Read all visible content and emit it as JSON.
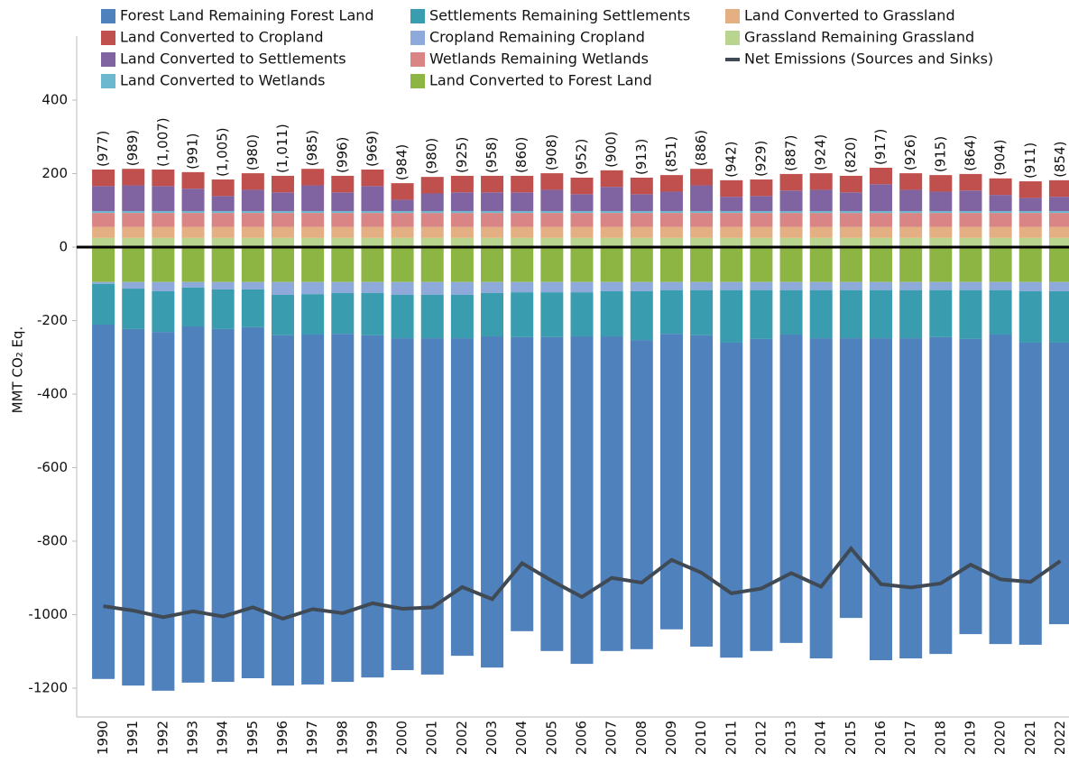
{
  "chart_data": {
    "type": "bar",
    "y_label": "MMT CO₂ Eq.",
    "categories": [
      "1990",
      "1991",
      "1992",
      "1993",
      "1994",
      "1995",
      "1996",
      "1997",
      "1998",
      "1999",
      "2000",
      "2001",
      "2002",
      "2003",
      "2004",
      "2005",
      "2006",
      "2007",
      "2008",
      "2009",
      "2010",
      "2011",
      "2012",
      "2013",
      "2014",
      "2015",
      "2016",
      "2017",
      "2018",
      "2019",
      "2020",
      "2021",
      "2022"
    ],
    "ylim": [
      -1300,
      500
    ],
    "yticks": [
      -1200,
      -1000,
      -800,
      -600,
      -400,
      -200,
      0,
      200,
      400
    ],
    "series": [
      {
        "name": "Forest Land Remaining Forest Land",
        "color": "#4f81bd",
        "values": [
          -964,
          -970,
          -976,
          -969,
          -960,
          -955,
          -953,
          -952,
          -947,
          -931,
          -903,
          -915,
          -864,
          -901,
          -800,
          -854,
          -891,
          -856,
          -841,
          -804,
          -847,
          -857,
          -849,
          -839,
          -871,
          -761,
          -876,
          -871,
          -862,
          -803,
          -842,
          -822,
          -766
        ]
      },
      {
        "name": "Land Converted to Cropland",
        "color": "#c0504d",
        "values": [
          45,
          45,
          45,
          45,
          45,
          45,
          45,
          45,
          45,
          45,
          45,
          45,
          45,
          45,
          45,
          45,
          45,
          45,
          45,
          45,
          45,
          45,
          45,
          45,
          45,
          45,
          45,
          45,
          45,
          45,
          45,
          45,
          45
        ]
      },
      {
        "name": "Land Converted to Settlements",
        "color": "#8064a2",
        "values": [
          68,
          70,
          68,
          61,
          41,
          58,
          51,
          70,
          51,
          68,
          31,
          48,
          51,
          51,
          51,
          58,
          46,
          66,
          46,
          53,
          70,
          39,
          41,
          56,
          58,
          51,
          73,
          58,
          53,
          56,
          44,
          36,
          39
        ]
      },
      {
        "name": "Land Converted to Wetlands",
        "color": "#6cb8cf",
        "values": [
          5,
          5,
          5,
          5,
          5,
          5,
          5,
          5,
          5,
          5,
          5,
          5,
          5,
          5,
          5,
          5,
          5,
          5,
          5,
          5,
          5,
          5,
          5,
          5,
          5,
          5,
          5,
          5,
          5,
          5,
          5,
          5,
          5
        ]
      },
      {
        "name": "Settlements Remaining Settlements",
        "color": "#3a9caf",
        "values": [
          -111,
          -110,
          -111,
          -106,
          -108,
          -103,
          -110,
          -110,
          -111,
          -115,
          -118,
          -118,
          -118,
          -118,
          -122,
          -122,
          -120,
          -123,
          -133,
          -119,
          -123,
          -143,
          -133,
          -121,
          -131,
          -131,
          -131,
          -131,
          -128,
          -133,
          -121,
          -140,
          -140
        ]
      },
      {
        "name": "Cropland Remaining Cropland",
        "color": "#8eaadb",
        "values": [
          -5,
          -18,
          -25,
          -15,
          -20,
          -20,
          -35,
          -33,
          -30,
          -30,
          -35,
          -35,
          -35,
          -30,
          -28,
          -28,
          -28,
          -25,
          -25,
          -22,
          -22,
          -22,
          -22,
          -22,
          -22,
          -22,
          -22,
          -22,
          -22,
          -22,
          -22,
          -25,
          -25
        ]
      },
      {
        "name": "Wetlands Remaining Wetlands",
        "color": "#d98585",
        "values": [
          38,
          38,
          38,
          38,
          38,
          38,
          38,
          38,
          38,
          38,
          38,
          38,
          38,
          38,
          38,
          38,
          38,
          38,
          38,
          38,
          38,
          38,
          38,
          38,
          38,
          38,
          38,
          38,
          38,
          38,
          38,
          38,
          38
        ]
      },
      {
        "name": "Land Converted to Forest Land",
        "color": "#8db543",
        "values": [
          -95,
          -95,
          -95,
          -95,
          -95,
          -95,
          -95,
          -95,
          -95,
          -95,
          -95,
          -95,
          -95,
          -95,
          -95,
          -95,
          -95,
          -95,
          -95,
          -95,
          -95,
          -95,
          -95,
          -95,
          -95,
          -95,
          -95,
          -95,
          -95,
          -95,
          -95,
          -95,
          -95
        ]
      },
      {
        "name": "Land Converted to Grassland",
        "color": "#e4b083",
        "values": [
          30,
          30,
          30,
          30,
          30,
          30,
          30,
          30,
          30,
          30,
          30,
          30,
          30,
          30,
          30,
          30,
          30,
          30,
          30,
          30,
          30,
          30,
          30,
          30,
          30,
          30,
          30,
          30,
          30,
          30,
          30,
          30,
          30
        ]
      },
      {
        "name": "Grassland Remaining Grassland",
        "color": "#b8d48f",
        "values": [
          25,
          25,
          25,
          25,
          25,
          25,
          25,
          25,
          25,
          25,
          25,
          25,
          25,
          25,
          25,
          25,
          25,
          25,
          25,
          25,
          25,
          25,
          25,
          25,
          25,
          25,
          25,
          25,
          25,
          25,
          25,
          25,
          25
        ]
      },
      {
        "name": "Net Emissions (Sources and Sinks)",
        "color": "#404a54",
        "type": "line",
        "values": [
          -977,
          -989,
          -1007,
          -991,
          -1005,
          -980,
          -1011,
          -985,
          -996,
          -969,
          -984,
          -980,
          -925,
          -958,
          -860,
          -908,
          -952,
          -900,
          -913,
          -851,
          -886,
          -942,
          -929,
          -887,
          -924,
          -820,
          -917,
          -926,
          -915,
          -864,
          -904,
          -911,
          -854
        ],
        "value_labels": [
          "(977)",
          "(989)",
          "(1,007)",
          "(991)",
          "(1,005)",
          "(980)",
          "(1,011)",
          "(985)",
          "(996)",
          "(969)",
          "(984)",
          "(980)",
          "(925)",
          "(958)",
          "(860)",
          "(908)",
          "(952)",
          "(900)",
          "(913)",
          "(851)",
          "(886)",
          "(942)",
          "(929)",
          "(887)",
          "(924)",
          "(820)",
          "(917)",
          "(926)",
          "(915)",
          "(864)",
          "(904)",
          "(911)",
          "(854)"
        ]
      }
    ]
  }
}
